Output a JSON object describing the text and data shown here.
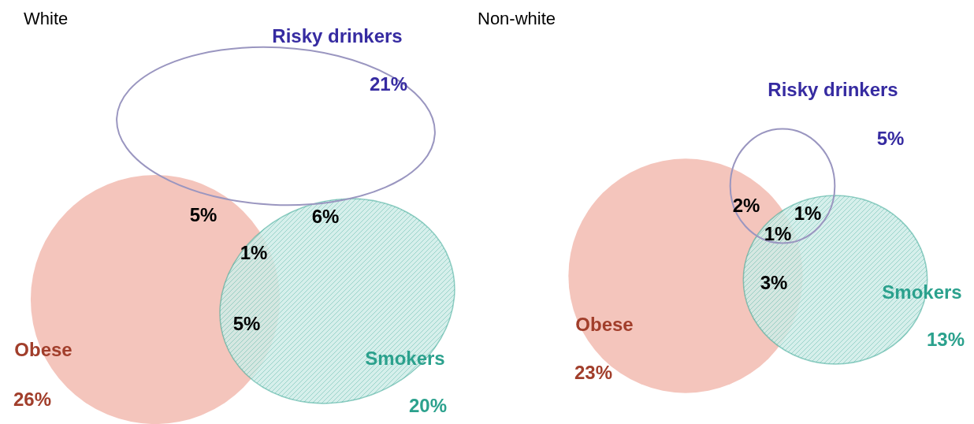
{
  "chart_data": [
    {
      "type": "other",
      "title": "White",
      "categories": [
        "Obese",
        "Smokers",
        "Risky drinkers"
      ],
      "values": [
        26,
        20,
        21
      ],
      "value_labels": [
        "26%",
        "20%",
        "21%"
      ],
      "colors": [
        "#f0b2a6",
        "#cfece7",
        "#9a96c0"
      ],
      "annotations": [
        "5%",
        "6%",
        "1%",
        "5%"
      ]
    },
    {
      "type": "other",
      "title": "Non-white",
      "categories": [
        "Obese",
        "Smokers",
        "Risky drinkers"
      ],
      "values": [
        23,
        13,
        5
      ],
      "value_labels": [
        "23%",
        "13%",
        "5%"
      ],
      "colors": [
        "#f0b2a6",
        "#cfece7",
        "#9a96c0"
      ],
      "annotations": [
        "2%",
        "1%",
        "1%",
        "3%"
      ]
    }
  ]
}
